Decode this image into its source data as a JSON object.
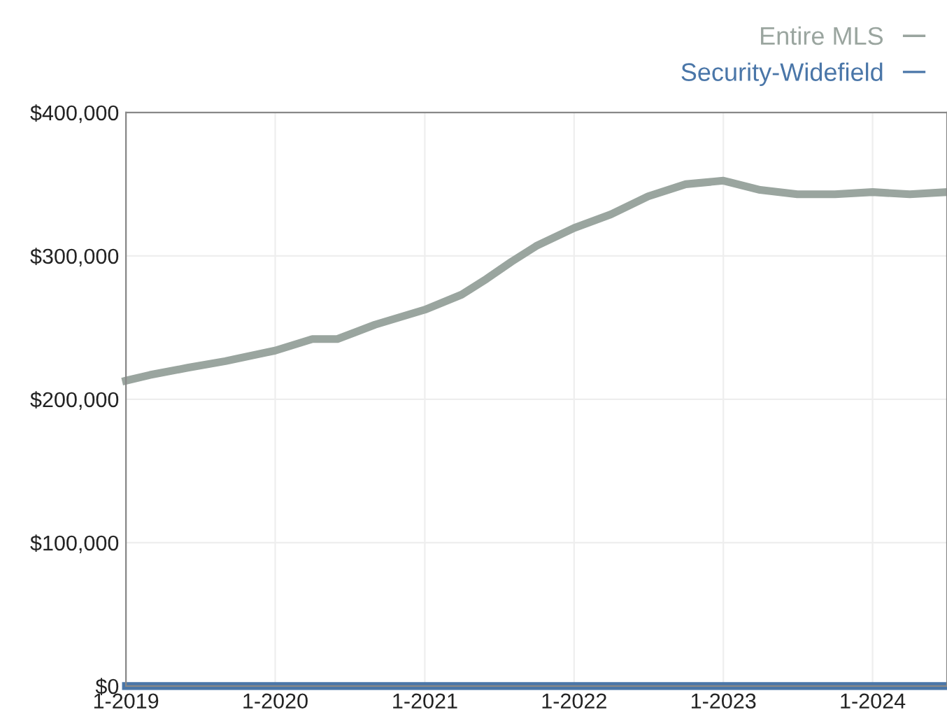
{
  "chart_data": {
    "type": "line",
    "x": [
      "2019-01",
      "2019-03",
      "2019-06",
      "2019-09",
      "2020-01",
      "2020-04",
      "2020-06",
      "2020-09",
      "2021-01",
      "2021-04",
      "2021-06",
      "2021-08",
      "2021-10",
      "2022-01",
      "2022-04",
      "2022-07",
      "2022-10",
      "2023-01",
      "2023-04",
      "2023-07",
      "2023-10",
      "2024-01",
      "2024-04",
      "2024-07"
    ],
    "series": [
      {
        "name": "Entire MLS",
        "color": "#9aa59f",
        "values": [
          213000,
          217000,
          222000,
          226600,
          234000,
          242000,
          242000,
          252000,
          262500,
          273000,
          284000,
          296000,
          307000,
          319500,
          329000,
          341500,
          350000,
          352500,
          346000,
          343000,
          343000,
          344500,
          343000,
          344500
        ]
      },
      {
        "name": "Security-Widefield",
        "color": "#4a76a8",
        "values": [
          0,
          0,
          0,
          0,
          0,
          0,
          0,
          0,
          0,
          0,
          0,
          0,
          0,
          0,
          0,
          0,
          0,
          0,
          0,
          0,
          0,
          0,
          0,
          0
        ]
      }
    ],
    "xlim": [
      "2019-01",
      "2024-07"
    ],
    "xticks": [
      {
        "value": "2019-01",
        "label": "1-2019"
      },
      {
        "value": "2020-01",
        "label": "1-2020"
      },
      {
        "value": "2021-01",
        "label": "1-2021"
      },
      {
        "value": "2022-01",
        "label": "1-2022"
      },
      {
        "value": "2023-01",
        "label": "1-2023"
      },
      {
        "value": "2024-01",
        "label": "1-2024"
      }
    ],
    "ylim": [
      0,
      400000
    ],
    "yticks": [
      {
        "value": 0,
        "label": "$0"
      },
      {
        "value": 100000,
        "label": "$100,000"
      },
      {
        "value": 200000,
        "label": "$200,000"
      },
      {
        "value": 300000,
        "label": "$300,000"
      },
      {
        "value": 400000,
        "label": "$400,000"
      }
    ],
    "grid": true,
    "legend": "top right",
    "marker": "none",
    "line_style": "solid"
  }
}
